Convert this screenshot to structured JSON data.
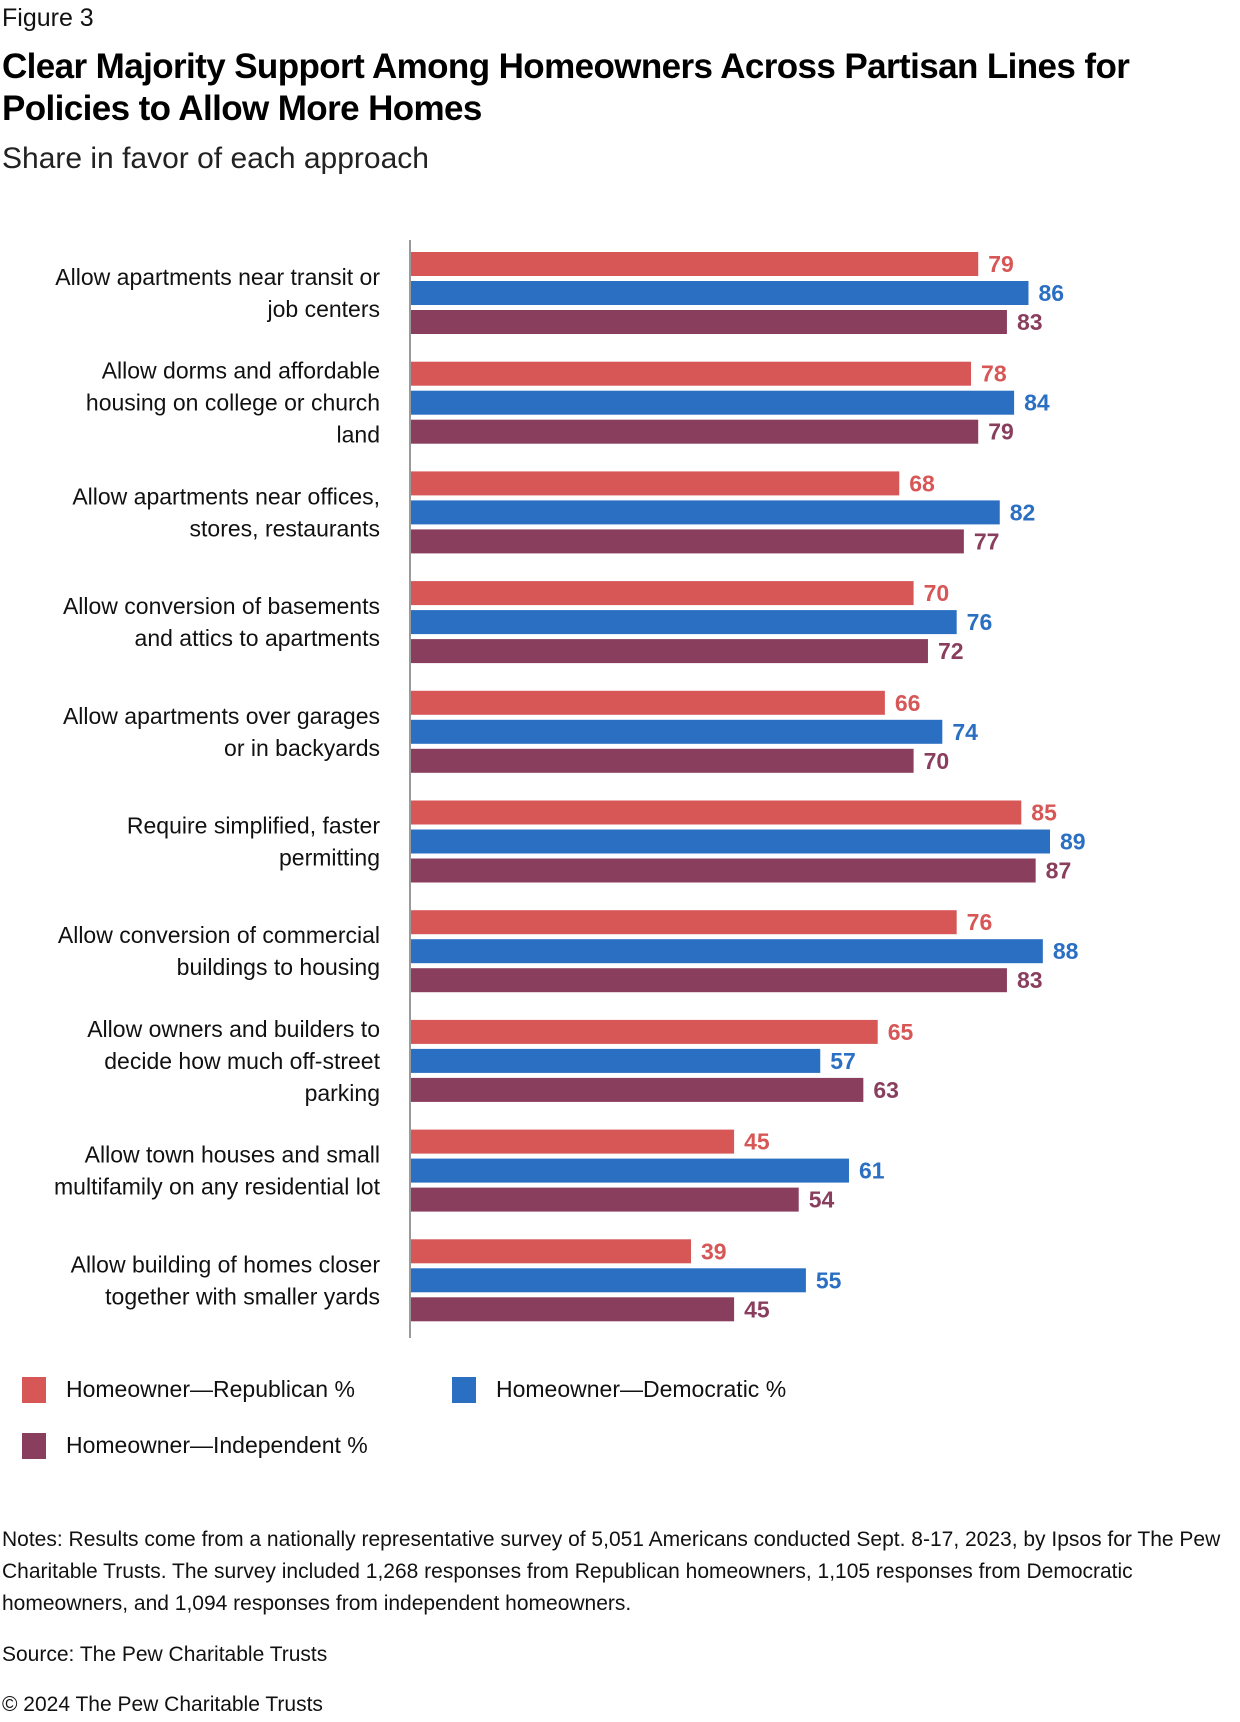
{
  "figure_label": "Figure 3",
  "title": "Clear Majority Support Among Homeowners Across Partisan Lines for Policies to Allow More Homes",
  "subtitle": "Share in favor of each approach",
  "chart_data": {
    "type": "bar",
    "orientation": "horizontal",
    "title": "Clear Majority Support Among Homeowners Across Partisan Lines for Policies to Allow More Homes",
    "subtitle": "Share in favor of each approach",
    "xlabel": "",
    "ylabel": "",
    "xlim": [
      0,
      100
    ],
    "grid": false,
    "legend_position": "bottom-left",
    "categories": [
      [
        "Allow apartments near transit or",
        "job centers"
      ],
      [
        "Allow dorms and affordable",
        "housing on college or church",
        "land"
      ],
      [
        "Allow apartments near offices,",
        "stores, restaurants"
      ],
      [
        "Allow conversion of basements",
        "and attics to apartments"
      ],
      [
        "Allow apartments over garages",
        "or in backyards"
      ],
      [
        "Require simplified, faster",
        "permitting"
      ],
      [
        "Allow conversion of commercial",
        "buildings to housing"
      ],
      [
        "Allow owners and builders to",
        "decide how much off-street",
        "parking"
      ],
      [
        "Allow town houses and small",
        "multifamily on any residential lot"
      ],
      [
        "Allow building of homes closer",
        "together with smaller yards"
      ]
    ],
    "series": [
      {
        "name": "Homeowner—Republican %",
        "color": "#d75656",
        "values": [
          79,
          78,
          68,
          70,
          66,
          85,
          76,
          65,
          45,
          39
        ]
      },
      {
        "name": "Homeowner—Democratic %",
        "color": "#2b6fc3",
        "values": [
          86,
          84,
          82,
          76,
          74,
          89,
          88,
          57,
          61,
          55
        ]
      },
      {
        "name": "Homeowner—Independent %",
        "color": "#893e5d",
        "values": [
          83,
          79,
          77,
          72,
          70,
          87,
          83,
          63,
          54,
          45
        ]
      }
    ]
  },
  "legend": [
    {
      "label": "Homeowner—Republican %",
      "color": "#d75656"
    },
    {
      "label": "Homeowner—Democratic %",
      "color": "#2b6fc3"
    },
    {
      "label": "Homeowner—Independent %",
      "color": "#893e5d"
    }
  ],
  "notes": "Notes: Results come from a nationally representative survey of 5,051 Americans conducted Sept. 8-17, 2023, by Ipsos for The Pew Charitable Trusts. The survey included 1,268 responses from Republican homeowners, 1,105 responses from Democratic homeowners, and 1,094 responses from independent homeowners.",
  "source": "Source: The Pew Charitable Trusts",
  "copyright": "© 2024 The Pew Charitable Trusts"
}
